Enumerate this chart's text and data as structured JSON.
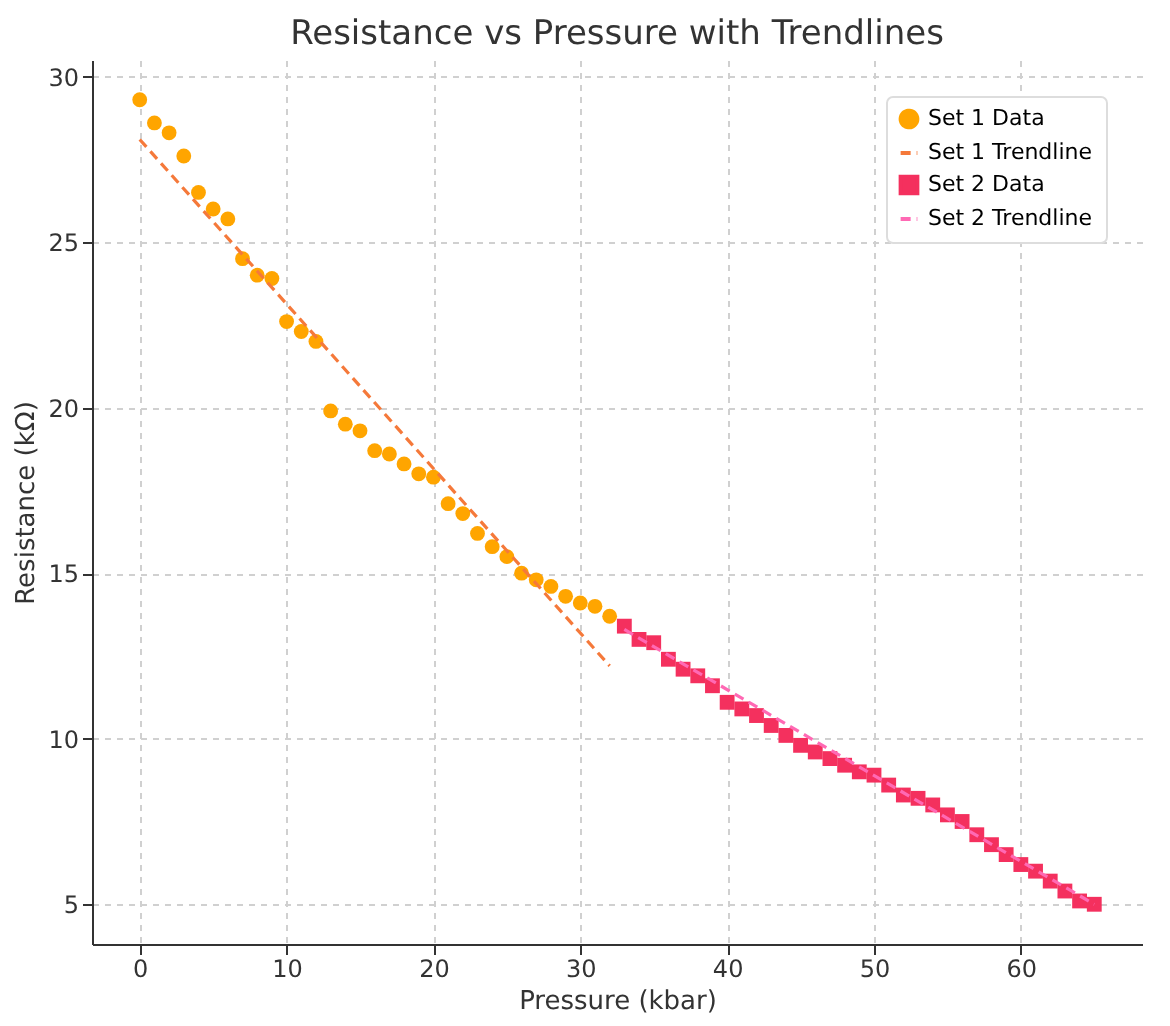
{
  "chart_data": {
    "type": "scatter",
    "title": "Resistance vs Pressure with Trendlines",
    "xlabel": "Pressure (kbar)",
    "ylabel": "Resistance (kΩ)",
    "xlim": [
      -3.25,
      68.25
    ],
    "xticks": [
      0,
      10,
      20,
      30,
      40,
      50,
      60
    ],
    "ylim": [
      3.8,
      30.5
    ],
    "yticks": [
      5,
      10,
      15,
      20,
      25,
      30
    ],
    "grid": true,
    "legend": "top right",
    "series": [
      {
        "name": "Set 1 Data",
        "marker": "circle",
        "color": "#ffa500",
        "x": [
          0,
          1,
          2,
          3,
          4,
          5,
          6,
          7,
          8,
          9,
          10,
          11,
          12,
          13,
          14,
          15,
          16,
          17,
          18,
          19,
          20,
          21,
          22,
          23,
          24,
          25,
          26,
          27,
          28,
          29,
          30,
          31,
          32
        ],
        "values": [
          29.3,
          28.6,
          28.3,
          27.6,
          26.5,
          26.0,
          25.7,
          24.5,
          24.0,
          23.9,
          22.6,
          22.3,
          22.0,
          19.9,
          19.5,
          19.3,
          18.7,
          18.6,
          18.3,
          18.0,
          17.9,
          17.1,
          16.8,
          16.2,
          15.8,
          15.5,
          15.0,
          14.8,
          14.6,
          14.3,
          14.1,
          14.0,
          13.7
        ]
      },
      {
        "name": "Set 1 Trendline",
        "type": "line",
        "line_style": "dashed",
        "color": "#f5793a",
        "x": [
          0,
          32
        ],
        "values": [
          28.1,
          12.2
        ]
      },
      {
        "name": "Set 2 Data",
        "marker": "square",
        "color": "#f4305e",
        "x": [
          33,
          34,
          35,
          36,
          37,
          38,
          39,
          40,
          41,
          42,
          43,
          44,
          45,
          46,
          47,
          48,
          49,
          50,
          51,
          52,
          53,
          54,
          55,
          56,
          57,
          58,
          59,
          60,
          61,
          62,
          63,
          64,
          65
        ],
        "values": [
          13.4,
          13.0,
          12.9,
          12.4,
          12.1,
          11.9,
          11.6,
          11.1,
          10.9,
          10.7,
          10.4,
          10.1,
          9.8,
          9.6,
          9.4,
          9.2,
          9.0,
          8.9,
          8.6,
          8.3,
          8.2,
          8.0,
          7.7,
          7.5,
          7.1,
          6.8,
          6.5,
          6.2,
          6.0,
          5.7,
          5.4,
          5.1,
          5.0
        ]
      },
      {
        "name": "Set 2 Trendline",
        "type": "line",
        "line_style": "dashed",
        "color": "#ff69b4",
        "x": [
          33,
          65
        ],
        "values": [
          13.3,
          5.0
        ]
      }
    ]
  }
}
